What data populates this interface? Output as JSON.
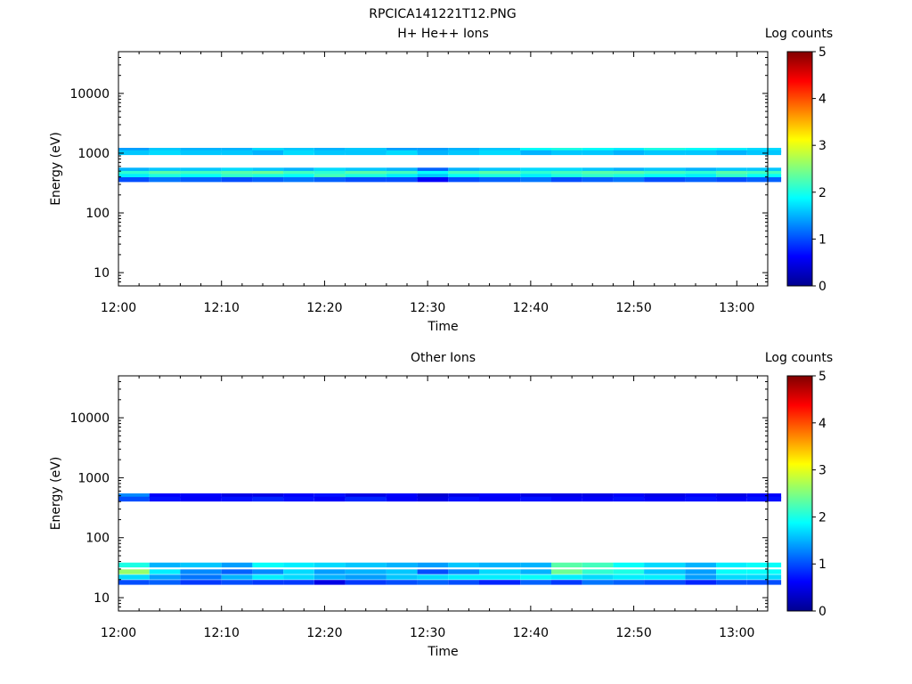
{
  "figure": {
    "title": "RPCICA141221T12.PNG"
  },
  "chart_data": [
    {
      "type": "heatmap",
      "title": "H+ He++ Ions",
      "xlabel": "Time",
      "ylabel": "Energy (eV)",
      "x_ticks": [
        "12:00",
        "12:10",
        "12:20",
        "12:30",
        "12:40",
        "12:50",
        "13:00"
      ],
      "x_range": [
        "12:00",
        "13:03"
      ],
      "y_scale": "log",
      "y_ticks": [
        "10",
        "100",
        "1000",
        "10000"
      ],
      "ylim": [
        6,
        50000
      ],
      "colorbar": {
        "label": "Log counts",
        "ticks": [
          "0",
          "1",
          "2",
          "3",
          "4",
          "5"
        ],
        "range": [
          0,
          5
        ]
      },
      "time_bins": [
        "12:00",
        "12:03",
        "12:06",
        "12:10",
        "12:13",
        "12:16",
        "12:19",
        "12:22",
        "12:26",
        "12:29",
        "12:32",
        "12:35",
        "12:39",
        "12:42",
        "12:45",
        "12:48",
        "12:51",
        "12:55",
        "12:58",
        "13:01"
      ],
      "bands": [
        {
          "energy": 1120,
          "values": [
            1.4,
            1.6,
            1.5,
            1.5,
            1.7,
            1.6,
            1.5,
            1.6,
            1.4,
            1.4,
            1.5,
            1.6,
            1.9,
            2.0,
            1.9,
            1.8,
            2.0,
            1.9,
            1.8,
            1.7
          ]
        },
        {
          "energy": 1020,
          "values": [
            1.6,
            1.7,
            1.6,
            1.6,
            1.5,
            1.7,
            1.6,
            1.6,
            1.7,
            1.5,
            1.6,
            1.7,
            1.5,
            1.6,
            1.6,
            1.5,
            1.6,
            1.6,
            1.5,
            1.6
          ]
        },
        {
          "energy": 520,
          "values": [
            1.5,
            1.6,
            1.6,
            1.7,
            1.6,
            1.5,
            1.7,
            1.6,
            1.5,
            1.1,
            1.5,
            1.6,
            1.7,
            1.7,
            1.6,
            1.5,
            1.6,
            1.5,
            1.6,
            1.6
          ]
        },
        {
          "energy": 460,
          "values": [
            2.1,
            2.3,
            2.2,
            2.3,
            2.4,
            2.2,
            2.1,
            2.3,
            2.2,
            1.9,
            2.2,
            2.3,
            2.1,
            2.2,
            2.3,
            2.3,
            2.2,
            2.1,
            2.3,
            2.2
          ]
        },
        {
          "energy": 410,
          "values": [
            1.8,
            2.0,
            1.9,
            2.1,
            2.0,
            1.9,
            2.2,
            2.0,
            1.8,
            1.6,
            1.9,
            2.0,
            1.8,
            2.0,
            2.1,
            2.0,
            1.9,
            1.8,
            2.1,
            1.9
          ]
        },
        {
          "energy": 360,
          "values": [
            1.0,
            1.2,
            1.1,
            1.0,
            1.1,
            1.2,
            1.1,
            1.0,
            1.0,
            0.6,
            1.0,
            1.1,
            1.2,
            1.0,
            1.1,
            1.2,
            1.0,
            1.1,
            1.0,
            1.1
          ]
        }
      ]
    },
    {
      "type": "heatmap",
      "title": "Other Ions",
      "xlabel": "Time",
      "ylabel": "Energy (eV)",
      "x_ticks": [
        "12:00",
        "12:10",
        "12:20",
        "12:30",
        "12:40",
        "12:50",
        "13:00"
      ],
      "x_range": [
        "12:00",
        "13:03"
      ],
      "y_scale": "log",
      "y_ticks": [
        "10",
        "100",
        "1000",
        "10000"
      ],
      "ylim": [
        6,
        50000
      ],
      "colorbar": {
        "label": "Log counts",
        "ticks": [
          "0",
          "1",
          "2",
          "3",
          "4",
          "5"
        ],
        "range": [
          0,
          5
        ]
      },
      "time_bins": [
        "12:00",
        "12:03",
        "12:06",
        "12:10",
        "12:13",
        "12:16",
        "12:19",
        "12:22",
        "12:26",
        "12:29",
        "12:32",
        "12:35",
        "12:39",
        "12:42",
        "12:45",
        "12:48",
        "12:51",
        "12:55",
        "12:58",
        "13:01"
      ],
      "bands": [
        {
          "energy": 500,
          "values": [
            1.3,
            0.6,
            0.6,
            0.5,
            0.5,
            0.6,
            0.7,
            0.5,
            0.6,
            0.4,
            0.5,
            0.6,
            0.5,
            0.5,
            0.5,
            0.6,
            0.5,
            0.6,
            0.5,
            0.6
          ]
        },
        {
          "energy": 440,
          "values": [
            1.0,
            0.7,
            0.6,
            0.7,
            0.8,
            0.7,
            0.6,
            0.8,
            0.6,
            0.5,
            0.7,
            0.6,
            0.7,
            0.6,
            0.6,
            0.7,
            0.6,
            0.7,
            0.6,
            0.7
          ]
        },
        {
          "energy": 35,
          "values": [
            2.0,
            1.5,
            1.6,
            1.4,
            1.9,
            1.8,
            1.7,
            1.6,
            1.5,
            1.4,
            1.6,
            1.5,
            1.5,
            2.3,
            2.2,
            1.9,
            1.7,
            1.5,
            1.8,
            1.9
          ]
        },
        {
          "energy": 27,
          "values": [
            2.6,
            1.8,
            1.3,
            1.1,
            1.3,
            1.7,
            1.4,
            1.5,
            1.6,
            1.0,
            1.3,
            1.7,
            1.5,
            2.4,
            2.1,
            2.0,
            1.6,
            1.4,
            1.9,
            1.9
          ]
        },
        {
          "energy": 22,
          "values": [
            1.7,
            1.4,
            1.2,
            1.5,
            1.8,
            1.7,
            1.5,
            1.4,
            1.6,
            1.7,
            1.8,
            1.8,
            1.9,
            1.8,
            1.7,
            1.8,
            1.8,
            1.4,
            1.7,
            1.7
          ]
        },
        {
          "energy": 18,
          "values": [
            1.0,
            1.1,
            0.9,
            1.0,
            0.9,
            0.9,
            0.5,
            0.9,
            1.0,
            1.1,
            1.0,
            0.8,
            1.1,
            0.9,
            1.2,
            1.1,
            1.0,
            0.8,
            1.0,
            1.0
          ]
        }
      ]
    }
  ]
}
